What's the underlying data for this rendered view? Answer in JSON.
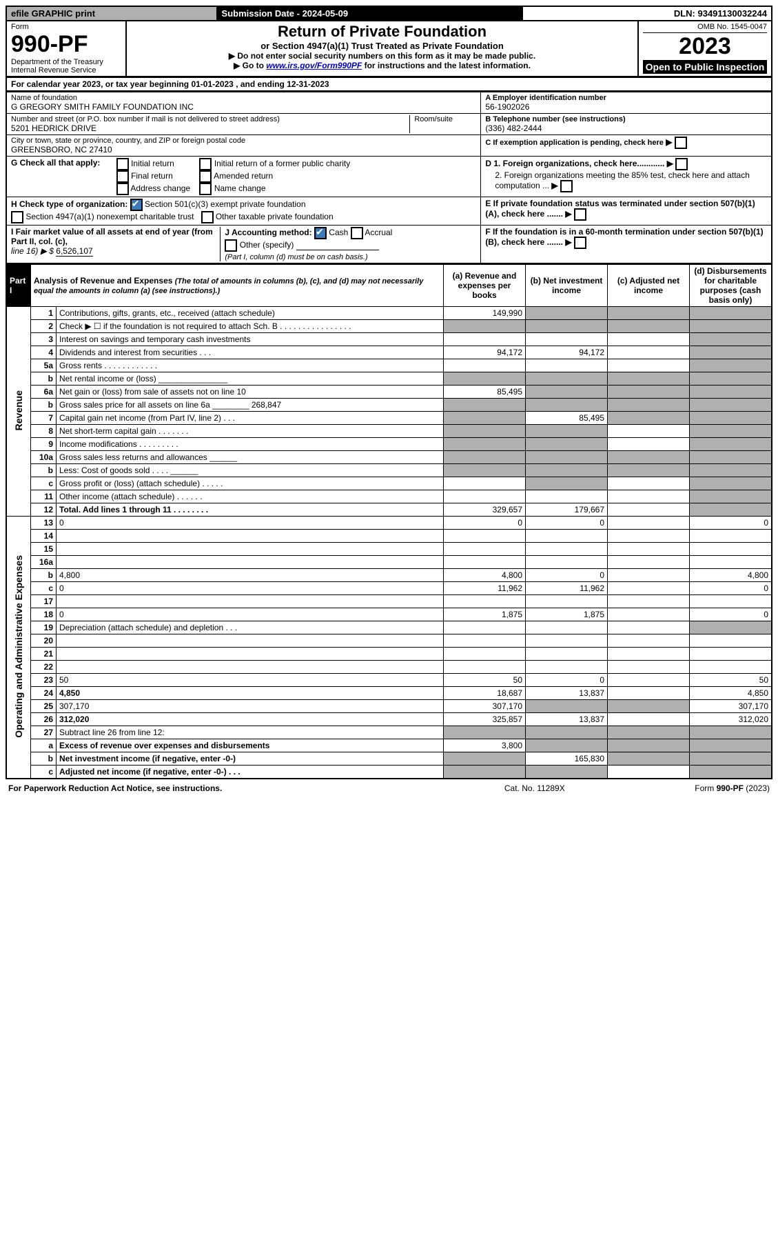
{
  "top": {
    "btn": "efile GRAPHIC print",
    "sub": "Submission Date - 2024-05-09",
    "dln": "DLN: 93491130032244"
  },
  "hdr": {
    "form_word": "Form",
    "form_no": "990-PF",
    "dept": "Department of the Treasury",
    "irs": "Internal Revenue Service",
    "title": "Return of Private Foundation",
    "subtitle": "or Section 4947(a)(1) Trust Treated as Private Foundation",
    "instr1": "▶ Do not enter social security numbers on this form as it may be made public.",
    "instr2_pre": "▶ Go to ",
    "instr2_link": "www.irs.gov/Form990PF",
    "instr2_post": " for instructions and the latest information.",
    "omb": "OMB No. 1545-0047",
    "year": "2023",
    "open": "Open to Public Inspection"
  },
  "cal": {
    "line_pre": "For calendar year 2023, or tax year beginning ",
    "begin": "01-01-2023",
    "mid": " , and ending ",
    "end": "12-31-2023"
  },
  "meta": {
    "name_lbl": "Name of foundation",
    "name": "G GREGORY SMITH FAMILY FOUNDATION INC",
    "ein_lbl": "A Employer identification number",
    "ein": "56-1902026",
    "addr_lbl": "Number and street (or P.O. box number if mail is not delivered to street address)",
    "addr": "5201 HEDRICK DRIVE",
    "room_lbl": "Room/suite",
    "tel_lbl": "B Telephone number (see instructions)",
    "tel": "(336) 482-2444",
    "city_lbl": "City or town, state or province, country, and ZIP or foreign postal code",
    "city": "GREENSBORO, NC  27410",
    "c_lbl": "C If exemption application is pending, check here",
    "g_lbl": "G Check all that apply:",
    "g1": "Initial return",
    "g2": "Final return",
    "g3": "Address change",
    "g4": "Initial return of a former public charity",
    "g5": "Amended return",
    "g6": "Name change",
    "d1": "D 1. Foreign organizations, check here............",
    "d2": "2. Foreign organizations meeting the 85% test, check here and attach computation ...",
    "h_lbl": "H Check type of organization:",
    "h1": "Section 501(c)(3) exempt private foundation",
    "h2": "Section 4947(a)(1) nonexempt charitable trust",
    "h3": "Other taxable private foundation",
    "e_lbl": "E  If private foundation status was terminated under section 507(b)(1)(A), check here .......",
    "i_lbl": "I Fair market value of all assets at end of year (from Part II, col. (c),",
    "i_line": "line 16) ▶ $",
    "i_val": "6,526,107",
    "j_lbl": "J Accounting method:",
    "j1": "Cash",
    "j2": "Accrual",
    "j3": "Other (specify)",
    "j_note": "(Part I, column (d) must be on cash basis.)",
    "f_lbl": "F  If the foundation is in a 60-month termination under section 507(b)(1)(B), check here ......."
  },
  "part1": {
    "label": "Part I",
    "title": "Analysis of Revenue and Expenses",
    "title_note": "(The total of amounts in columns (b), (c), and (d) may not necessarily equal the amounts in column (a) (see instructions).)",
    "col_a": "(a)   Revenue and expenses per books",
    "col_b": "(b)   Net investment income",
    "col_c": "(c)   Adjusted net income",
    "col_d": "(d)   Disbursements for charitable purposes (cash basis only)",
    "side_rev": "Revenue",
    "side_exp": "Operating and Administrative Expenses"
  },
  "rows": [
    {
      "n": "1",
      "d": "Contributions, gifts, grants, etc., received (attach schedule)",
      "a": "149,990",
      "b_sh": true,
      "c_sh": true,
      "d_sh": true
    },
    {
      "n": "2",
      "d": "Check ▶ ☐ if the foundation is not required to attach Sch. B   .   .   .   .   .   .   .   .   .   .   .   .   .   .   .   .",
      "a_sh": true,
      "b_sh": true,
      "c_sh": true,
      "d_sh": true
    },
    {
      "n": "3",
      "d": "Interest on savings and temporary cash investments",
      "a": "",
      "b": "",
      "c": "",
      "d_sh": true
    },
    {
      "n": "4",
      "d": "Dividends and interest from securities   .   .   .",
      "a": "94,172",
      "b": "94,172",
      "c": "",
      "d_sh": true
    },
    {
      "n": "5a",
      "d": "Gross rents   .   .   .   .   .   .   .   .   .   .   .   .",
      "a": "",
      "b": "",
      "c": "",
      "d_sh": true
    },
    {
      "n": "b",
      "d": "Net rental income or (loss)   _______________",
      "a_sh": true,
      "b_sh": true,
      "c_sh": true,
      "d_sh": true
    },
    {
      "n": "6a",
      "d": "Net gain or (loss) from sale of assets not on line 10",
      "a": "85,495",
      "b_sh": true,
      "c_sh": true,
      "d_sh": true
    },
    {
      "n": "b",
      "d": "Gross sales price for all assets on line 6a ________ 268,847",
      "a_sh": true,
      "b_sh": true,
      "c_sh": true,
      "d_sh": true
    },
    {
      "n": "7",
      "d": "Capital gain net income (from Part IV, line 2)   .   .   .",
      "a_sh": true,
      "b": "85,495",
      "c_sh": true,
      "d_sh": true
    },
    {
      "n": "8",
      "d": "Net short-term capital gain   .   .   .   .   .   .   .",
      "a_sh": true,
      "b_sh": true,
      "c": "",
      "d_sh": true
    },
    {
      "n": "9",
      "d": "Income modifications   .   .   .   .   .   .   .   .   .",
      "a_sh": true,
      "b_sh": true,
      "c": "",
      "d_sh": true
    },
    {
      "n": "10a",
      "d": "Gross sales less returns and allowances   ______",
      "a_sh": true,
      "b_sh": true,
      "c_sh": true,
      "d_sh": true
    },
    {
      "n": "b",
      "d": "Less: Cost of goods sold   .   .   .   .   ______",
      "a_sh": true,
      "b_sh": true,
      "c_sh": true,
      "d_sh": true
    },
    {
      "n": "c",
      "d": "Gross profit or (loss) (attach schedule)   .   .   .   .   .",
      "a": "",
      "b_sh": true,
      "c": "",
      "d_sh": true
    },
    {
      "n": "11",
      "d": "Other income (attach schedule)   .   .   .   .   .   .",
      "a": "",
      "b": "",
      "c": "",
      "d_sh": true
    },
    {
      "n": "12",
      "d": "Total. Add lines 1 through 11   .   .   .   .   .   .   .   .",
      "bold": true,
      "a": "329,657",
      "b": "179,667",
      "c": "",
      "d_sh": true
    },
    {
      "n": "13",
      "d": "0",
      "a": "0",
      "b": "0",
      "c": ""
    },
    {
      "n": "14",
      "d": "",
      "a": "",
      "b": "",
      "c": ""
    },
    {
      "n": "15",
      "d": "",
      "a": "",
      "b": "",
      "c": ""
    },
    {
      "n": "16a",
      "d": "",
      "a": "",
      "b": "",
      "c": ""
    },
    {
      "n": "b",
      "d": "4,800",
      "a": "4,800",
      "b": "0",
      "c": ""
    },
    {
      "n": "c",
      "d": "0",
      "a": "11,962",
      "b": "11,962",
      "c": ""
    },
    {
      "n": "17",
      "d": "",
      "a": "",
      "b": "",
      "c": ""
    },
    {
      "n": "18",
      "d": "0",
      "a": "1,875",
      "b": "1,875",
      "c": ""
    },
    {
      "n": "19",
      "d": "Depreciation (attach schedule) and depletion   .   .   .",
      "a": "",
      "b": "",
      "c": "",
      "d_sh": true
    },
    {
      "n": "20",
      "d": "",
      "a": "",
      "b": "",
      "c": ""
    },
    {
      "n": "21",
      "d": "",
      "a": "",
      "b": "",
      "c": ""
    },
    {
      "n": "22",
      "d": "",
      "a": "",
      "b": "",
      "c": ""
    },
    {
      "n": "23",
      "d": "50",
      "a": "50",
      "b": "0",
      "c": ""
    },
    {
      "n": "24",
      "d": "4,850",
      "bold": true,
      "a": "18,687",
      "b": "13,837",
      "c": ""
    },
    {
      "n": "25",
      "d": "307,170",
      "a": "307,170",
      "b_sh": true,
      "c_sh": true
    },
    {
      "n": "26",
      "d": "312,020",
      "bold": true,
      "a": "325,857",
      "b": "13,837",
      "c": ""
    },
    {
      "n": "27",
      "d": "Subtract line 26 from line 12:",
      "a_sh": true,
      "b_sh": true,
      "c_sh": true,
      "d_sh": true
    },
    {
      "n": "a",
      "d": "Excess of revenue over expenses and disbursements",
      "bold": true,
      "a": "3,800",
      "b_sh": true,
      "c_sh": true,
      "d_sh": true
    },
    {
      "n": "b",
      "d": "Net investment income (if negative, enter -0-)",
      "bold": true,
      "a_sh": true,
      "b": "165,830",
      "c_sh": true,
      "d_sh": true
    },
    {
      "n": "c",
      "d": "Adjusted net income (if negative, enter -0-)   .   .   .",
      "bold": true,
      "a_sh": true,
      "b_sh": true,
      "c": "",
      "d_sh": true
    }
  ],
  "footer": {
    "left": "For Paperwork Reduction Act Notice, see instructions.",
    "mid": "Cat. No. 11289X",
    "right": "Form 990-PF (2023)"
  }
}
